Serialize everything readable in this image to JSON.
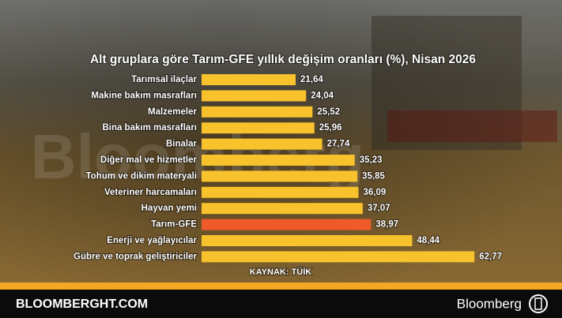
{
  "chart_data": {
    "type": "bar",
    "orientation": "horizontal",
    "title": "Alt gruplara göre Tarım-GFE yıllık değişim oranları (%), Nisan 2026",
    "categories": [
      "Tarımsal ilaçlar",
      "Makine bakım masrafları",
      "Malzemeler",
      "Bina bakım masrafları",
      "Binalar",
      "Diğer mal ve hizmetler",
      "Tohum ve dikim materyali",
      "Veteriner harcamaları",
      "Hayvan yemi",
      "Tarım-GFE",
      "Enerji ve yağlayıcılar",
      "Gübre ve toprak geliştiriciler"
    ],
    "values": [
      21.64,
      24.04,
      25.52,
      25.96,
      27.74,
      35.23,
      35.85,
      36.09,
      37.07,
      38.97,
      48.44,
      62.77
    ],
    "value_labels": [
      "21,64",
      "24,04",
      "25,52",
      "25,96",
      "27,74",
      "35,23",
      "35,85",
      "36,09",
      "37,07",
      "38,97",
      "48,44",
      "62,77"
    ],
    "colors": [
      "#f8c22c",
      "#f8c22c",
      "#f8c22c",
      "#f8c22c",
      "#f8c22c",
      "#f8c22c",
      "#f8c22c",
      "#f8c22c",
      "#f8c22c",
      "#ef5a2a",
      "#f8c22c",
      "#f8c22c"
    ],
    "source": "KAYNAK: TÜİK",
    "watermark": "Bloomberg"
  },
  "footer": {
    "site": "BLOOMBERGHT.COM",
    "brand": "Bloomberg"
  }
}
